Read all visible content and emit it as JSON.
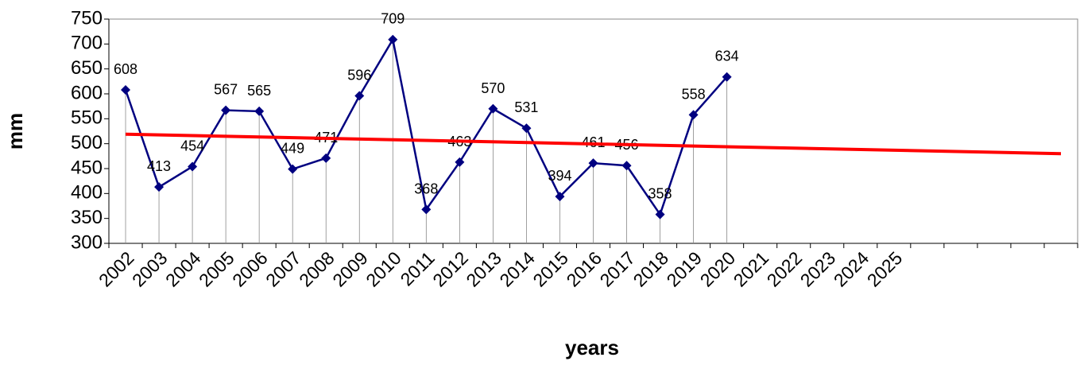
{
  "chart_data": {
    "type": "line",
    "x_label": "years",
    "y_label": "mm",
    "categories": [
      "2002",
      "2003",
      "2004",
      "2005",
      "2006",
      "2007",
      "2008",
      "2009",
      "2010",
      "2011",
      "2012",
      "2013",
      "2014",
      "2015",
      "2016",
      "2017",
      "2018",
      "2019",
      "2020",
      "2021",
      "2022",
      "2023",
      "2024",
      "2025",
      null,
      null,
      null,
      null,
      null
    ],
    "series": [
      {
        "color": "#000080",
        "values": [
          608,
          413,
          454,
          567,
          565,
          449,
          471,
          596,
          709,
          368,
          463,
          570,
          531,
          394,
          461,
          456,
          358,
          558,
          634,
          null,
          null,
          null,
          null,
          null,
          null,
          null,
          null,
          null,
          null
        ]
      }
    ],
    "trendline": {
      "color": "#ff0000",
      "values": [
        519,
        480
      ]
    },
    "ylim": [
      300,
      750
    ],
    "yticks": [
      300,
      350,
      400,
      450,
      500,
      550,
      600,
      650,
      700,
      750
    ]
  }
}
